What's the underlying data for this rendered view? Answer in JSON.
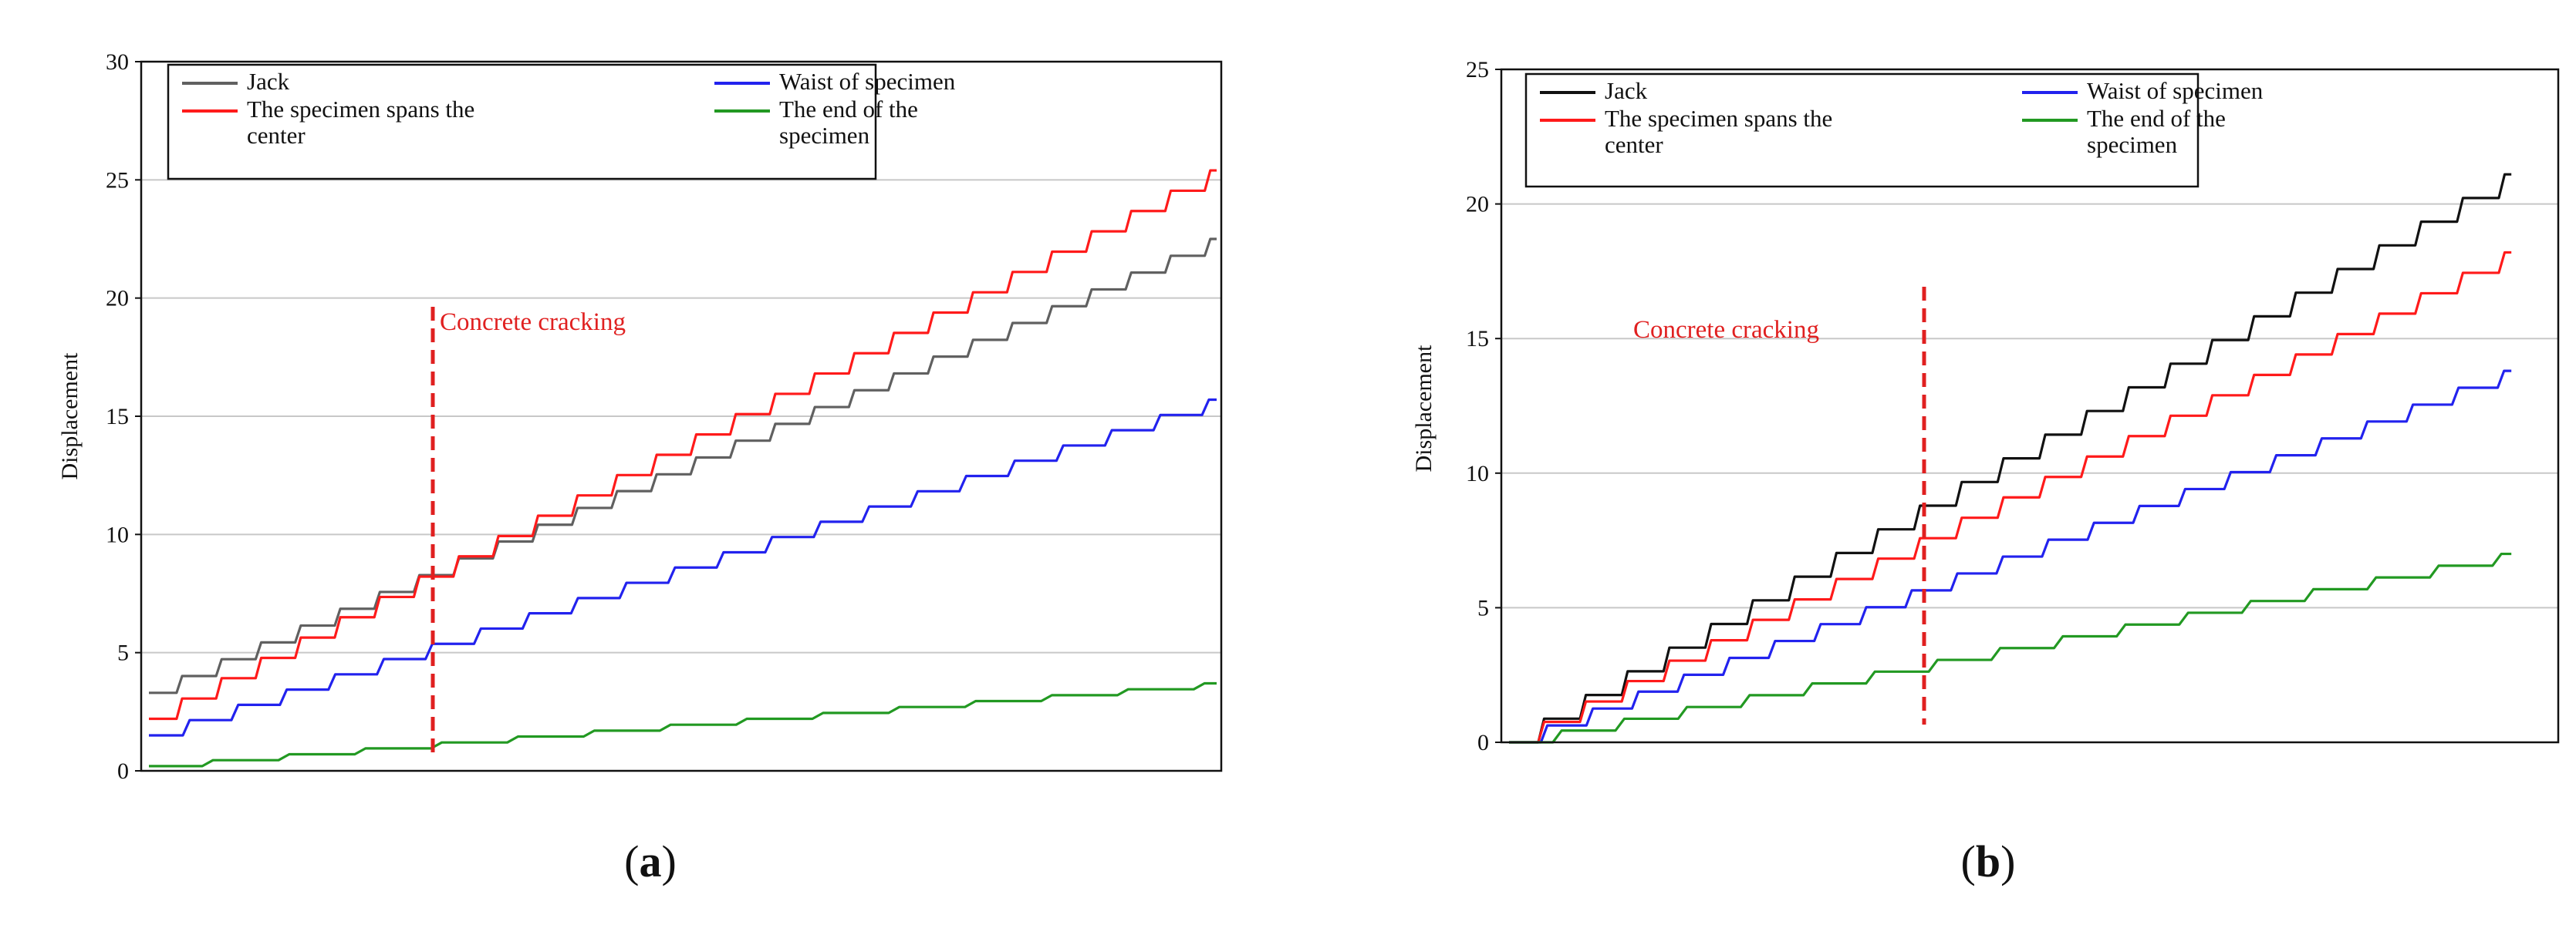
{
  "chart_data": [
    {
      "type": "line",
      "panel": "a",
      "caption": {
        "open": "(",
        "letter": "a",
        "close": ")"
      },
      "title": "",
      "xlabel": "",
      "ylabel": "Displacement",
      "ylim": [
        0,
        30
      ],
      "yticks": [
        0,
        5,
        10,
        15,
        20,
        25,
        30
      ],
      "xlim": [
        0,
        100
      ],
      "grid": true,
      "legend": "top-left",
      "annotation": {
        "text": "Concrete cracking",
        "x": 27
      },
      "series": [
        {
          "name": "Jack",
          "color": "#606060",
          "start": 3.3,
          "end": 22.5,
          "steps": 27,
          "x_end": 100
        },
        {
          "name": "The specimen spans the center",
          "color": "#ff1a1a",
          "start": 2.2,
          "end": 25.4,
          "steps": 27,
          "x_end": 100
        },
        {
          "name": "Waist of specimen",
          "color": "#2222ee",
          "start": 1.5,
          "end": 15.7,
          "steps": 22,
          "x_end": 100
        },
        {
          "name": "The end of the specimen",
          "color": "#229922",
          "start": 0.2,
          "end": 3.7,
          "steps": 14,
          "x_end": 100
        }
      ]
    },
    {
      "type": "line",
      "panel": "b",
      "caption": {
        "open": "(",
        "letter": "b",
        "close": ")"
      },
      "title": "",
      "xlabel": "",
      "ylabel": "Displacement",
      "ylim": [
        0,
        25
      ],
      "yticks": [
        0,
        5,
        10,
        15,
        20,
        25
      ],
      "xlim": [
        0,
        100
      ],
      "grid": true,
      "legend": "top-left",
      "annotation": {
        "text": "Concrete cracking",
        "x": 40
      },
      "series": [
        {
          "name": "Jack",
          "color": "#111111",
          "start": 0,
          "end": 21.1,
          "steps": 24,
          "x_end": 96
        },
        {
          "name": "The specimen spans the center",
          "color": "#ff1a1a",
          "start": 0,
          "end": 18.2,
          "steps": 24,
          "x_end": 96
        },
        {
          "name": "Waist of specimen",
          "color": "#2222ee",
          "start": 0,
          "end": 13.8,
          "steps": 22,
          "x_end": 96
        },
        {
          "name": "The end of the specimen",
          "color": "#229922",
          "start": 0,
          "end": 7.0,
          "steps": 16,
          "x_end": 96
        }
      ]
    }
  ]
}
